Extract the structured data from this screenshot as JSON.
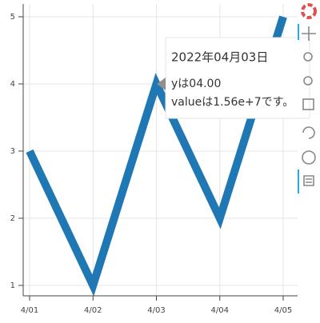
{
  "chart_data": {
    "type": "line",
    "categories": [
      "4/01",
      "4/02",
      "4/03",
      "4/04",
      "4/05"
    ],
    "values": [
      3,
      1,
      4,
      2,
      5
    ],
    "color": "#1f77b4",
    "ylim": [
      0.845,
      5.19
    ],
    "yticks": [
      1,
      2,
      3,
      4,
      5
    ],
    "grid": true,
    "tooltip": {
      "title": "2022年04月03日",
      "lines": [
        "yは04.00",
        "valueは1.56e+7です。"
      ]
    }
  }
}
